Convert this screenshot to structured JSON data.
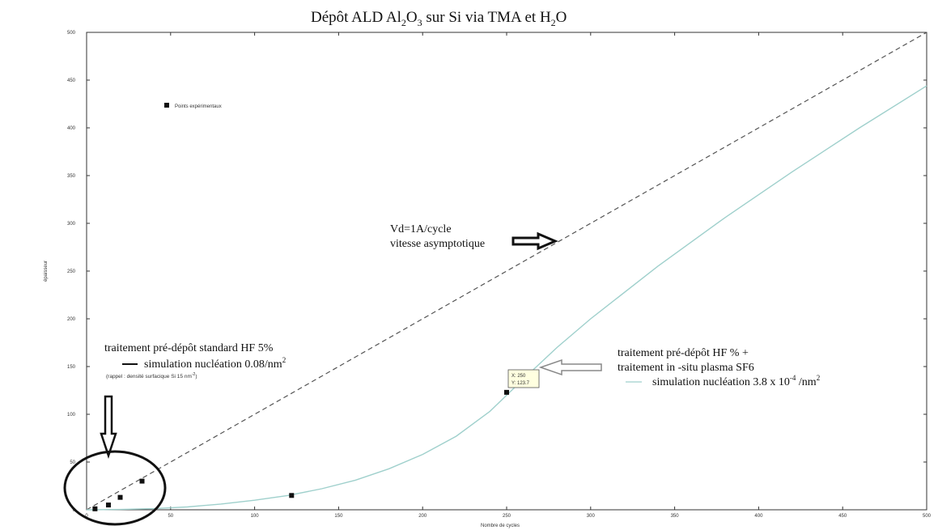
{
  "chart_data": {
    "type": "line",
    "title": "Dépôt ALD Al2O3 sur Si via TMA et H2O",
    "title_parts": {
      "t1": "Dépôt ALD  Al",
      "s1": "2",
      "t2": "O",
      "s2": "3",
      "t3": "  sur Si via TMA et H",
      "s3": "2",
      "t4": "O"
    },
    "xlabel": "Nombre de cycles",
    "ylabel": "épaisseur",
    "xlim": [
      0,
      500
    ],
    "ylim": [
      0,
      500
    ],
    "xticks": [
      0,
      50,
      100,
      150,
      200,
      250,
      300,
      350,
      400,
      450,
      500
    ],
    "yticks": [
      0,
      50,
      100,
      150,
      200,
      250,
      300,
      350,
      400,
      450,
      500
    ],
    "legend": {
      "marker": "square",
      "label": "Points expérimentaux",
      "placement": "top-left"
    },
    "series": [
      {
        "style": "dashed",
        "color": "#555555",
        "x": [
          0,
          40,
          100,
          200,
          300,
          400,
          500
        ],
        "y": [
          0,
          40,
          100,
          200,
          300,
          400,
          500
        ]
      },
      {
        "style": "solid",
        "color": "#9fd0cc",
        "x": [
          0,
          20,
          40,
          60,
          80,
          100,
          120,
          140,
          160,
          180,
          200,
          220,
          240,
          260,
          280,
          300,
          340,
          380,
          420,
          460,
          500
        ],
        "y": [
          0,
          0.3,
          1.2,
          3,
          6,
          10,
          15,
          22,
          31,
          43,
          58,
          77,
          103,
          137,
          170,
          200,
          255,
          306,
          354,
          400,
          444
        ]
      }
    ],
    "points": [
      {
        "x": 5,
        "y": 1
      },
      {
        "x": 13,
        "y": 5
      },
      {
        "x": 20,
        "y": 13
      },
      {
        "x": 33,
        "y": 30
      },
      {
        "x": 122,
        "y": 15
      },
      {
        "x": 250,
        "y": 123
      }
    ],
    "datatip": {
      "x": 250,
      "y": 123.7,
      "line1": "X: 250",
      "line2": "Y: 123.7"
    },
    "annotations": {
      "asym_line1": "Vd=1A/cycle",
      "asym_line2": "vitesse asymptotique",
      "std_line1": "traitement pré-dépôt standard HF 5%",
      "std_line2_a": "simulation nucléation 0.08/nm",
      "std_line2_sup": "2",
      "std_line3_a": "(rappel : densité surfacique Si 15 nm",
      "std_line3_sup": "-2",
      "std_line3_b": ")",
      "sf6_line1": "traitement pré-dépôt HF % +",
      "sf6_line2": "traitement in -situ plasma SF6",
      "sf6_line3_a": "simulation nucléation 3.8 x 10",
      "sf6_line3_sup": "-4",
      "sf6_line3_b": " /nm",
      "sf6_line3_sup2": "2"
    }
  }
}
